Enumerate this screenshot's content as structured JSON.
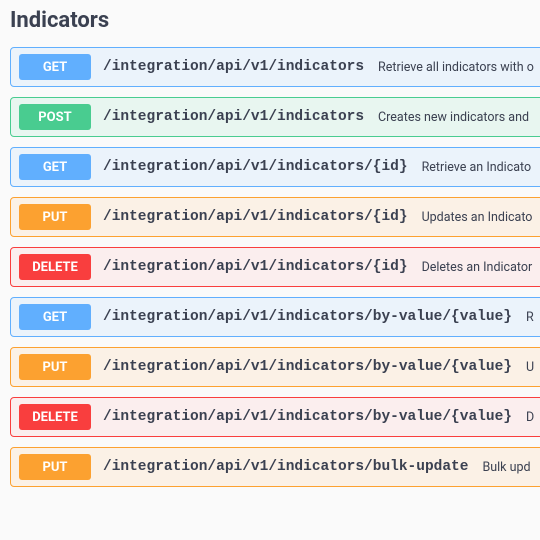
{
  "section": {
    "title": "Indicators"
  },
  "ops": [
    {
      "method": "GET",
      "path": "/integration/api/v1/indicators",
      "desc": "Retrieve all indicators with o"
    },
    {
      "method": "POST",
      "path": "/integration/api/v1/indicators",
      "desc": "Creates new indicators and"
    },
    {
      "method": "GET",
      "path": "/integration/api/v1/indicators/{id}",
      "desc": "Retrieve an Indicato"
    },
    {
      "method": "PUT",
      "path": "/integration/api/v1/indicators/{id}",
      "desc": "Updates an Indicato"
    },
    {
      "method": "DELETE",
      "path": "/integration/api/v1/indicators/{id}",
      "desc": "Deletes an Indicator"
    },
    {
      "method": "GET",
      "path": "/integration/api/v1/indicators/by-value/{value}",
      "desc": "R"
    },
    {
      "method": "PUT",
      "path": "/integration/api/v1/indicators/by-value/{value}",
      "desc": "U"
    },
    {
      "method": "DELETE",
      "path": "/integration/api/v1/indicators/by-value/{value}",
      "desc": "D"
    },
    {
      "method": "PUT",
      "path": "/integration/api/v1/indicators/bulk-update",
      "desc": "Bulk upd"
    }
  ],
  "styles": {
    "colors": {
      "get": {
        "bg": "#ebf3fb",
        "border": "#61affe",
        "badge": "#61affe"
      },
      "post": {
        "bg": "#e8f6f0",
        "border": "#49cc90",
        "badge": "#49cc90"
      },
      "put": {
        "bg": "#fbf1e6",
        "border": "#fca130",
        "badge": "#fca130"
      },
      "delete": {
        "bg": "#fbeeee",
        "border": "#f93e3e",
        "badge": "#f93e3e"
      }
    },
    "title_fontsize": 22,
    "path_font": "Courier New",
    "path_fontsize": 14.5,
    "desc_fontsize": 12.5,
    "page_bg": "#fafafa",
    "text_color": "#3b4151"
  }
}
